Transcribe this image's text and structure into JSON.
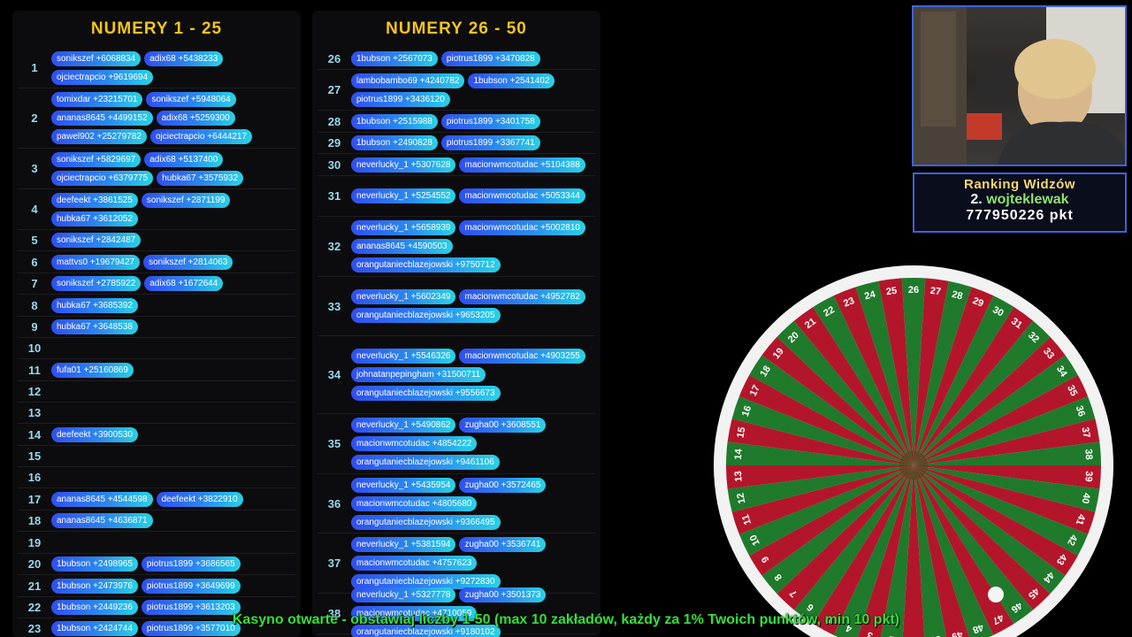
{
  "left_panel": {
    "title": "NUMERY 1 - 25",
    "rows": [
      {
        "num": "1",
        "h": 46,
        "bets": [
          "sonikszef +6068834",
          "adix68 +5438233",
          "ojciectrapcio +9619694"
        ]
      },
      {
        "num": "2",
        "h": 68,
        "bets": [
          "tomixdar +23215701",
          "sonikszef +5948064",
          "ananas8645 +4499152",
          "adix68 +5259300",
          "pawel902 +25279782",
          "ojciectrapcio +6444217"
        ]
      },
      {
        "num": "3",
        "h": 46,
        "bets": [
          "sonikszef +5829697",
          "adix68 +5137400",
          "ojciectrapcio +6379775",
          "hubka67 +3575932"
        ]
      },
      {
        "num": "4",
        "h": 46,
        "bets": [
          "deefeekt +3861525",
          "sonikszef +2871199",
          "hubka67 +3612052"
        ]
      },
      {
        "num": "5",
        "h": 24,
        "bets": [
          "sonikszef +2842487"
        ]
      },
      {
        "num": "6",
        "h": 25,
        "bets": [
          "mattvs0 +19679427",
          "sonikszef +2814063"
        ]
      },
      {
        "num": "7",
        "h": 24,
        "bets": [
          "sonikszef +2785922",
          "adix68 +1672644"
        ]
      },
      {
        "num": "8",
        "h": 25,
        "bets": [
          "hubka67 +3685392"
        ]
      },
      {
        "num": "9",
        "h": 24,
        "bets": [
          "hubka67 +3648538"
        ]
      },
      {
        "num": "10",
        "h": 24,
        "bets": []
      },
      {
        "num": "11",
        "h": 25,
        "bets": [
          "fufa01 +25160869"
        ]
      },
      {
        "num": "12",
        "h": 24,
        "bets": []
      },
      {
        "num": "13",
        "h": 24,
        "bets": []
      },
      {
        "num": "14",
        "h": 25,
        "bets": [
          "deefeekt +3900530"
        ]
      },
      {
        "num": "15",
        "h": 24,
        "bets": []
      },
      {
        "num": "16",
        "h": 24,
        "bets": []
      },
      {
        "num": "17",
        "h": 25,
        "bets": [
          "ananas8645 +4544598",
          "deefeekt +3822910"
        ]
      },
      {
        "num": "18",
        "h": 24,
        "bets": [
          "ananas8645 +4636871"
        ]
      },
      {
        "num": "19",
        "h": 25,
        "bets": []
      },
      {
        "num": "20",
        "h": 24,
        "bets": [
          "1bubson +2498965",
          "piotrus1899 +3686565"
        ]
      },
      {
        "num": "21",
        "h": 25,
        "bets": [
          "1bubson +2473976",
          "piotrus1899 +3649699"
        ]
      },
      {
        "num": "22",
        "h": 24,
        "bets": [
          "1bubson +2449236",
          "piotrus1899 +3613203"
        ]
      },
      {
        "num": "23",
        "h": 24,
        "bets": [
          "1bubson +2424744",
          "piotrus1899 +3577010"
        ]
      }
    ]
  },
  "right_panel": {
    "title": "NUMERY 26 - 50",
    "rows": [
      {
        "num": "26",
        "h": 25,
        "bets": [
          "1bubson +2567073",
          "piotrus1899 +3470828"
        ]
      },
      {
        "num": "27",
        "h": 46,
        "bets": [
          "lambobambo69 +4240782",
          "1bubson +2541402",
          "piotrus1899 +3436120"
        ]
      },
      {
        "num": "28",
        "h": 25,
        "bets": [
          "1bubson +2515988",
          "piotrus1899 +3401758"
        ]
      },
      {
        "num": "29",
        "h": 24,
        "bets": [
          "1bubson +2490828",
          "piotrus1899 +3367741"
        ]
      },
      {
        "num": "30",
        "h": 25,
        "bets": [
          "neverlucky_1 +5307628",
          "macionwmcotudac +5104388"
        ]
      },
      {
        "num": "31",
        "h": 46,
        "bets": [
          "neverlucky_1 +5254552",
          "macionwmcotudac +5053344"
        ]
      },
      {
        "num": "32",
        "h": 68,
        "bets": [
          "neverlucky_1 +5658939",
          "macionwmcotudac +5002810",
          "ananas8645 +4590503",
          "orangutaniecblazejowski +9750712"
        ]
      },
      {
        "num": "33",
        "h": 67,
        "bets": [
          "neverlucky_1 +5602349",
          "macionwmcotudac +4952782",
          "orangutaniecblazejowski +9653205"
        ]
      },
      {
        "num": "34",
        "h": 88,
        "bets": [
          "neverlucky_1 +5546326",
          "macionwmcotudac +4903255",
          "johnatanpepingham +31500711",
          "orangutaniecblazejowski +9556673"
        ]
      },
      {
        "num": "35",
        "h": 68,
        "bets": [
          "neverlucky_1 +5490862",
          "zugha00 +3608551",
          "macionwmcotudac +4854222",
          "orangutaniecblazejowski +9461106"
        ]
      },
      {
        "num": "36",
        "h": 67,
        "bets": [
          "neverlucky_1 +5435954",
          "zugha00 +3572465",
          "macionwmcotudac +4805680",
          "orangutaniecblazejowski +9366495"
        ]
      },
      {
        "num": "37",
        "h": 68,
        "bets": [
          "neverlucky_1 +5381594",
          "zugha00 +3536741",
          "macionwmcotudac +4757623",
          "orangutaniecblazejowski +9272830"
        ]
      },
      {
        "num": "38",
        "h": 46,
        "bets": [
          "neverlucky_1 +5327778",
          "zugha00 +3501373",
          "macionwmcotudac +4710059",
          "orangutaniecblazejowski +9180102"
        ]
      }
    ]
  },
  "ranking": {
    "title": "Ranking Widzów",
    "position": "2.",
    "user": "wojteklewak",
    "points": "777950226 pkt"
  },
  "wheel": {
    "numbers_count": 50,
    "colors": {
      "red": "#b3162a",
      "green": "#1f7a2c",
      "rim": "#f2f2f2",
      "label": "#ffffff"
    }
  },
  "ticker": "Kasyno otwarte - obstawiaj liczby 1-50 (max 10 zakładów, każdy za 1% Twoich punktów, min 10 pkt)"
}
